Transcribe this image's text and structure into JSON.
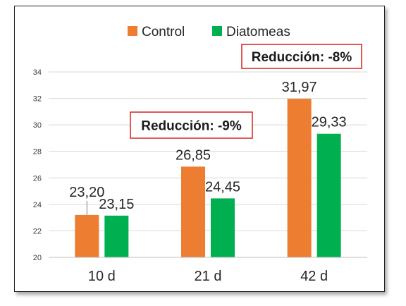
{
  "chart_data": {
    "type": "bar",
    "categories": [
      "10 d",
      "21 d",
      "42 d"
    ],
    "series": [
      {
        "name": "Control",
        "values": [
          23.2,
          26.85,
          31.97
        ],
        "labels": [
          "23,20",
          "26,85",
          "31,97"
        ],
        "color": "#ed7d31"
      },
      {
        "name": "Diatomeas",
        "values": [
          23.15,
          24.45,
          29.33
        ],
        "labels": [
          "23,15",
          "24,45",
          "29,33"
        ],
        "color": "#00b050"
      }
    ],
    "ylim": [
      20,
      34
    ],
    "yticks": [
      20,
      22,
      24,
      26,
      28,
      30,
      32,
      34
    ],
    "grid": true,
    "legend": "top",
    "annotations": [
      {
        "text": "Reducción: -9%",
        "category": "21 d"
      },
      {
        "text": "Reducción: -8%",
        "category": "42 d"
      }
    ]
  }
}
